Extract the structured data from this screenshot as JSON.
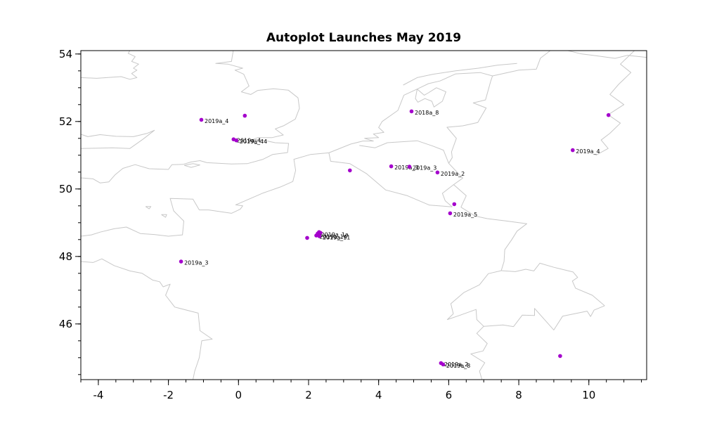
{
  "chart_data": {
    "type": "scatter",
    "title": "Autoplot Launches May 2019",
    "xlabel": "",
    "ylabel": "",
    "xlim": [
      -4.5,
      11.65
    ],
    "ylim": [
      44.35,
      54.1
    ],
    "x_ticks": [
      -4,
      -2,
      0,
      2,
      4,
      6,
      8,
      10
    ],
    "y_ticks": [
      46,
      48,
      50,
      52,
      54
    ],
    "x_minor_step": 0.5,
    "y_minor_step": 0.5,
    "grid": false,
    "legend_position": "none",
    "marker_color": "#a400cc",
    "outline_color": "#c8c8c8",
    "axis_color": "#000000",
    "points": [
      {
        "x": -1.06,
        "y": 52.05,
        "label": "2019a_4"
      },
      {
        "x": 0.18,
        "y": 52.17,
        "label": ""
      },
      {
        "x": -0.14,
        "y": 51.47,
        "label": "2019a_4"
      },
      {
        "x": -0.06,
        "y": 51.44,
        "label": "2019a_44"
      },
      {
        "x": 4.94,
        "y": 52.3,
        "label": "2018a_8"
      },
      {
        "x": 10.56,
        "y": 52.19,
        "label": ""
      },
      {
        "x": 9.54,
        "y": 51.15,
        "label": "2019a_4"
      },
      {
        "x": 3.18,
        "y": 50.55,
        "label": ""
      },
      {
        "x": 4.36,
        "y": 50.67,
        "label": "2019a_3"
      },
      {
        "x": 4.88,
        "y": 50.66,
        "label": "2019a_3"
      },
      {
        "x": 5.68,
        "y": 50.49,
        "label": "2019a_2"
      },
      {
        "x": 6.16,
        "y": 49.55,
        "label": ""
      },
      {
        "x": 6.04,
        "y": 49.28,
        "label": "2019a_5"
      },
      {
        "x": 2.3,
        "y": 48.72,
        "label": ""
      },
      {
        "x": 2.26,
        "y": 48.68,
        "label": "2019a_1a"
      },
      {
        "x": 2.34,
        "y": 48.7,
        "label": ""
      },
      {
        "x": 2.22,
        "y": 48.62,
        "label": "2019a_14"
      },
      {
        "x": 2.31,
        "y": 48.6,
        "label": "2019a_11"
      },
      {
        "x": 1.96,
        "y": 48.55,
        "label": ""
      },
      {
        "x": -1.64,
        "y": 47.85,
        "label": "2019a_3"
      },
      {
        "x": 5.78,
        "y": 44.84,
        "label": "2019a_2"
      },
      {
        "x": 5.84,
        "y": 44.8,
        "label": "2019a_8"
      },
      {
        "x": 9.18,
        "y": 45.05,
        "label": ""
      }
    ],
    "map_outlines": [
      [
        [
          -4.5,
          50.33
        ],
        [
          -4.15,
          50.3
        ],
        [
          -3.95,
          50.18
        ],
        [
          -3.7,
          50.21
        ],
        [
          -3.52,
          50.42
        ],
        [
          -3.3,
          50.61
        ],
        [
          -2.95,
          50.72
        ],
        [
          -2.55,
          50.6
        ],
        [
          -2.0,
          50.58
        ],
        [
          -1.9,
          50.72
        ],
        [
          -1.58,
          50.73
        ],
        [
          -1.35,
          50.8
        ],
        [
          -1.1,
          50.84
        ],
        [
          -0.9,
          50.78
        ],
        [
          -0.2,
          50.74
        ],
        [
          0.25,
          50.75
        ],
        [
          0.7,
          50.88
        ],
        [
          0.97,
          51.02
        ],
        [
          1.4,
          51.08
        ],
        [
          1.43,
          51.35
        ],
        [
          1.05,
          51.37
        ],
        [
          0.68,
          51.45
        ],
        [
          0.42,
          51.47
        ],
        [
          0.55,
          51.52
        ],
        [
          0.95,
          51.52
        ],
        [
          1.28,
          51.6
        ],
        [
          1.05,
          51.78
        ],
        [
          1.3,
          51.88
        ],
        [
          1.62,
          52.07
        ],
        [
          1.74,
          52.39
        ],
        [
          1.7,
          52.7
        ],
        [
          1.42,
          52.93
        ],
        [
          1.0,
          52.97
        ],
        [
          0.55,
          52.92
        ],
        [
          0.35,
          52.8
        ],
        [
          0.08,
          52.88
        ],
        [
          0.3,
          53.05
        ],
        [
          0.15,
          53.4
        ],
        [
          -0.1,
          53.52
        ],
        [
          0.12,
          53.58
        ],
        [
          -0.3,
          53.7
        ],
        [
          -0.65,
          53.72
        ],
        [
          -0.2,
          53.78
        ],
        [
          -0.15,
          54.1
        ]
      ],
      [
        [
          -4.5,
          51.2
        ],
        [
          -4.0,
          51.21
        ],
        [
          -3.6,
          51.22
        ],
        [
          -3.1,
          51.2
        ],
        [
          -2.72,
          51.48
        ],
        [
          -2.4,
          51.74
        ],
        [
          -2.6,
          51.65
        ],
        [
          -3.0,
          51.55
        ],
        [
          -3.5,
          51.56
        ],
        [
          -3.95,
          51.61
        ],
        [
          -4.3,
          51.55
        ],
        [
          -4.5,
          51.62
        ]
      ],
      [
        [
          -4.5,
          53.3
        ],
        [
          -4.05,
          53.28
        ],
        [
          -3.35,
          53.33
        ],
        [
          -3.1,
          53.25
        ],
        [
          -2.9,
          53.3
        ],
        [
          -3.05,
          53.42
        ],
        [
          -2.9,
          53.52
        ],
        [
          -3.0,
          53.58
        ],
        [
          -2.85,
          53.7
        ],
        [
          -3.05,
          53.78
        ],
        [
          -2.95,
          53.92
        ],
        [
          -3.15,
          54.02
        ],
        [
          -3.1,
          54.1
        ]
      ],
      [
        [
          -4.5,
          48.6
        ],
        [
          -4.2,
          48.64
        ],
        [
          -3.95,
          48.72
        ],
        [
          -3.55,
          48.82
        ],
        [
          -3.2,
          48.87
        ],
        [
          -2.8,
          48.68
        ],
        [
          -2.4,
          48.65
        ],
        [
          -2.0,
          48.6
        ],
        [
          -1.6,
          48.64
        ],
        [
          -1.56,
          49.05
        ],
        [
          -1.85,
          49.35
        ],
        [
          -1.95,
          49.72
        ],
        [
          -1.3,
          49.7
        ],
        [
          -1.12,
          49.38
        ],
        [
          -0.85,
          49.38
        ],
        [
          -0.2,
          49.28
        ],
        [
          0.05,
          49.4
        ],
        [
          0.12,
          49.5
        ],
        [
          -0.08,
          49.53
        ],
        [
          0.35,
          49.72
        ],
        [
          0.7,
          49.88
        ],
        [
          1.2,
          50.06
        ],
        [
          1.55,
          50.22
        ],
        [
          1.63,
          50.55
        ],
        [
          1.58,
          50.88
        ],
        [
          2.05,
          51.02
        ],
        [
          2.58,
          51.07
        ],
        [
          3.2,
          51.33
        ],
        [
          3.55,
          51.42
        ],
        [
          3.85,
          51.42
        ],
        [
          3.6,
          51.5
        ],
        [
          4.0,
          51.52
        ],
        [
          3.85,
          51.63
        ],
        [
          4.15,
          51.68
        ],
        [
          4.0,
          51.82
        ],
        [
          4.1,
          52.0
        ],
        [
          4.55,
          52.33
        ],
        [
          4.72,
          52.78
        ],
        [
          5.1,
          52.96
        ],
        [
          5.42,
          53.12
        ],
        [
          5.75,
          53.2
        ],
        [
          6.2,
          53.41
        ],
        [
          6.9,
          53.45
        ],
        [
          7.25,
          53.35
        ],
        [
          8.0,
          53.52
        ],
        [
          8.5,
          53.55
        ],
        [
          8.62,
          53.88
        ],
        [
          8.9,
          54.1
        ]
      ],
      [
        [
          5.1,
          52.96
        ],
        [
          5.3,
          52.78
        ],
        [
          5.42,
          52.85
        ],
        [
          5.65,
          53.0
        ],
        [
          5.92,
          52.88
        ],
        [
          5.82,
          52.6
        ],
        [
          5.58,
          52.43
        ],
        [
          5.52,
          52.6
        ],
        [
          5.32,
          52.68
        ],
        [
          5.12,
          52.57
        ],
        [
          5.05,
          52.68
        ],
        [
          5.1,
          52.96
        ]
      ],
      [
        [
          4.7,
          53.08
        ],
        [
          5.1,
          53.3
        ],
        [
          5.55,
          53.4
        ],
        [
          6.2,
          53.5
        ],
        [
          6.85,
          53.58
        ],
        [
          7.4,
          53.67
        ],
        [
          7.95,
          53.72
        ]
      ],
      [
        [
          -4.5,
          47.85
        ],
        [
          -4.15,
          47.82
        ],
        [
          -3.9,
          47.93
        ],
        [
          -3.55,
          47.73
        ],
        [
          -3.1,
          47.57
        ],
        [
          -2.75,
          47.5
        ],
        [
          -2.45,
          47.3
        ],
        [
          -2.25,
          47.25
        ],
        [
          -2.15,
          47.1
        ],
        [
          -1.95,
          47.18
        ],
        [
          -2.08,
          46.85
        ],
        [
          -1.82,
          46.5
        ],
        [
          -1.15,
          46.32
        ],
        [
          -1.1,
          45.8
        ],
        [
          -0.75,
          45.55
        ],
        [
          -1.05,
          45.5
        ],
        [
          -1.12,
          45.0
        ],
        [
          -1.25,
          44.6
        ],
        [
          -1.3,
          44.35
        ]
      ],
      [
        [
          -1.55,
          50.7
        ],
        [
          -1.3,
          50.75
        ],
        [
          -1.1,
          50.71
        ],
        [
          -1.35,
          50.64
        ],
        [
          -1.55,
          50.7
        ]
      ],
      [
        [
          -2.2,
          49.24
        ],
        [
          -2.05,
          49.24
        ],
        [
          -2.08,
          49.16
        ],
        [
          -2.2,
          49.24
        ]
      ],
      [
        [
          -2.65,
          49.48
        ],
        [
          -2.5,
          49.48
        ],
        [
          -2.55,
          49.41
        ],
        [
          -2.65,
          49.48
        ]
      ],
      [
        [
          2.58,
          51.07
        ],
        [
          2.63,
          50.82
        ],
        [
          3.18,
          50.75
        ],
        [
          3.66,
          50.45
        ],
        [
          4.2,
          49.97
        ],
        [
          4.82,
          49.8
        ],
        [
          5.45,
          49.52
        ],
        [
          6.1,
          49.47
        ]
      ],
      [
        [
          3.45,
          51.29
        ],
        [
          3.9,
          51.22
        ],
        [
          4.25,
          51.37
        ],
        [
          5.1,
          51.43
        ],
        [
          5.55,
          51.27
        ],
        [
          5.85,
          51.15
        ],
        [
          6.0,
          50.76
        ]
      ],
      [
        [
          6.0,
          50.76
        ],
        [
          6.1,
          50.93
        ],
        [
          6.08,
          51.1
        ],
        [
          6.22,
          51.5
        ],
        [
          5.95,
          51.83
        ],
        [
          6.4,
          51.87
        ],
        [
          6.83,
          51.97
        ],
        [
          7.07,
          52.4
        ],
        [
          6.7,
          52.55
        ],
        [
          7.05,
          52.64
        ],
        [
          7.2,
          53.2
        ],
        [
          7.25,
          53.35
        ]
      ],
      [
        [
          6.0,
          50.76
        ],
        [
          6.4,
          50.32
        ],
        [
          6.14,
          50.13
        ],
        [
          6.5,
          49.8
        ],
        [
          6.35,
          49.46
        ]
      ],
      [
        [
          6.14,
          50.13
        ],
        [
          5.82,
          49.87
        ],
        [
          5.9,
          49.65
        ],
        [
          6.1,
          49.47
        ]
      ],
      [
        [
          6.35,
          49.46
        ],
        [
          6.75,
          49.2
        ],
        [
          7.1,
          49.12
        ],
        [
          7.65,
          49.05
        ],
        [
          8.23,
          48.97
        ],
        [
          7.95,
          48.75
        ],
        [
          7.8,
          48.5
        ],
        [
          7.6,
          48.2
        ],
        [
          7.58,
          47.85
        ],
        [
          7.5,
          47.58
        ]
      ],
      [
        [
          7.5,
          47.58
        ],
        [
          7.9,
          47.55
        ],
        [
          8.2,
          47.62
        ],
        [
          8.43,
          47.57
        ],
        [
          8.6,
          47.8
        ],
        [
          9.0,
          47.68
        ],
        [
          9.55,
          47.54
        ],
        [
          9.68,
          47.38
        ],
        [
          9.53,
          47.27
        ],
        [
          9.62,
          47.06
        ],
        [
          10.1,
          46.85
        ],
        [
          10.45,
          46.54
        ]
      ],
      [
        [
          7.5,
          47.58
        ],
        [
          7.13,
          47.49
        ],
        [
          6.88,
          47.16
        ],
        [
          6.43,
          46.93
        ],
        [
          6.06,
          46.6
        ],
        [
          6.13,
          46.3
        ],
        [
          5.96,
          46.13
        ],
        [
          6.3,
          46.25
        ],
        [
          6.78,
          46.43
        ],
        [
          6.8,
          46.13
        ],
        [
          7.0,
          45.93
        ],
        [
          6.8,
          45.72
        ],
        [
          7.1,
          45.42
        ],
        [
          6.98,
          45.2
        ],
        [
          6.63,
          45.11
        ],
        [
          7.03,
          44.85
        ],
        [
          6.88,
          44.6
        ],
        [
          6.95,
          44.35
        ]
      ],
      [
        [
          7.0,
          45.93
        ],
        [
          7.55,
          45.97
        ],
        [
          7.85,
          45.92
        ],
        [
          8.1,
          46.26
        ],
        [
          8.45,
          46.25
        ],
        [
          8.45,
          46.46
        ],
        [
          9.0,
          45.82
        ],
        [
          9.25,
          46.23
        ],
        [
          9.95,
          46.38
        ],
        [
          10.05,
          46.22
        ],
        [
          10.15,
          46.41
        ],
        [
          10.45,
          46.54
        ]
      ],
      [
        [
          11.3,
          54.1
        ],
        [
          10.9,
          53.7
        ],
        [
          11.2,
          53.45
        ],
        [
          10.85,
          53.1
        ],
        [
          10.6,
          52.8
        ],
        [
          11.0,
          52.5
        ],
        [
          10.55,
          52.2
        ],
        [
          10.9,
          51.95
        ],
        [
          10.6,
          51.65
        ],
        [
          10.35,
          51.45
        ],
        [
          10.55,
          51.2
        ],
        [
          10.2,
          51.0
        ]
      ],
      [
        [
          9.4,
          54.1
        ],
        [
          9.8,
          54.0
        ],
        [
          10.2,
          53.95
        ],
        [
          10.75,
          53.87
        ],
        [
          11.1,
          53.96
        ],
        [
          11.65,
          53.9
        ]
      ]
    ]
  }
}
